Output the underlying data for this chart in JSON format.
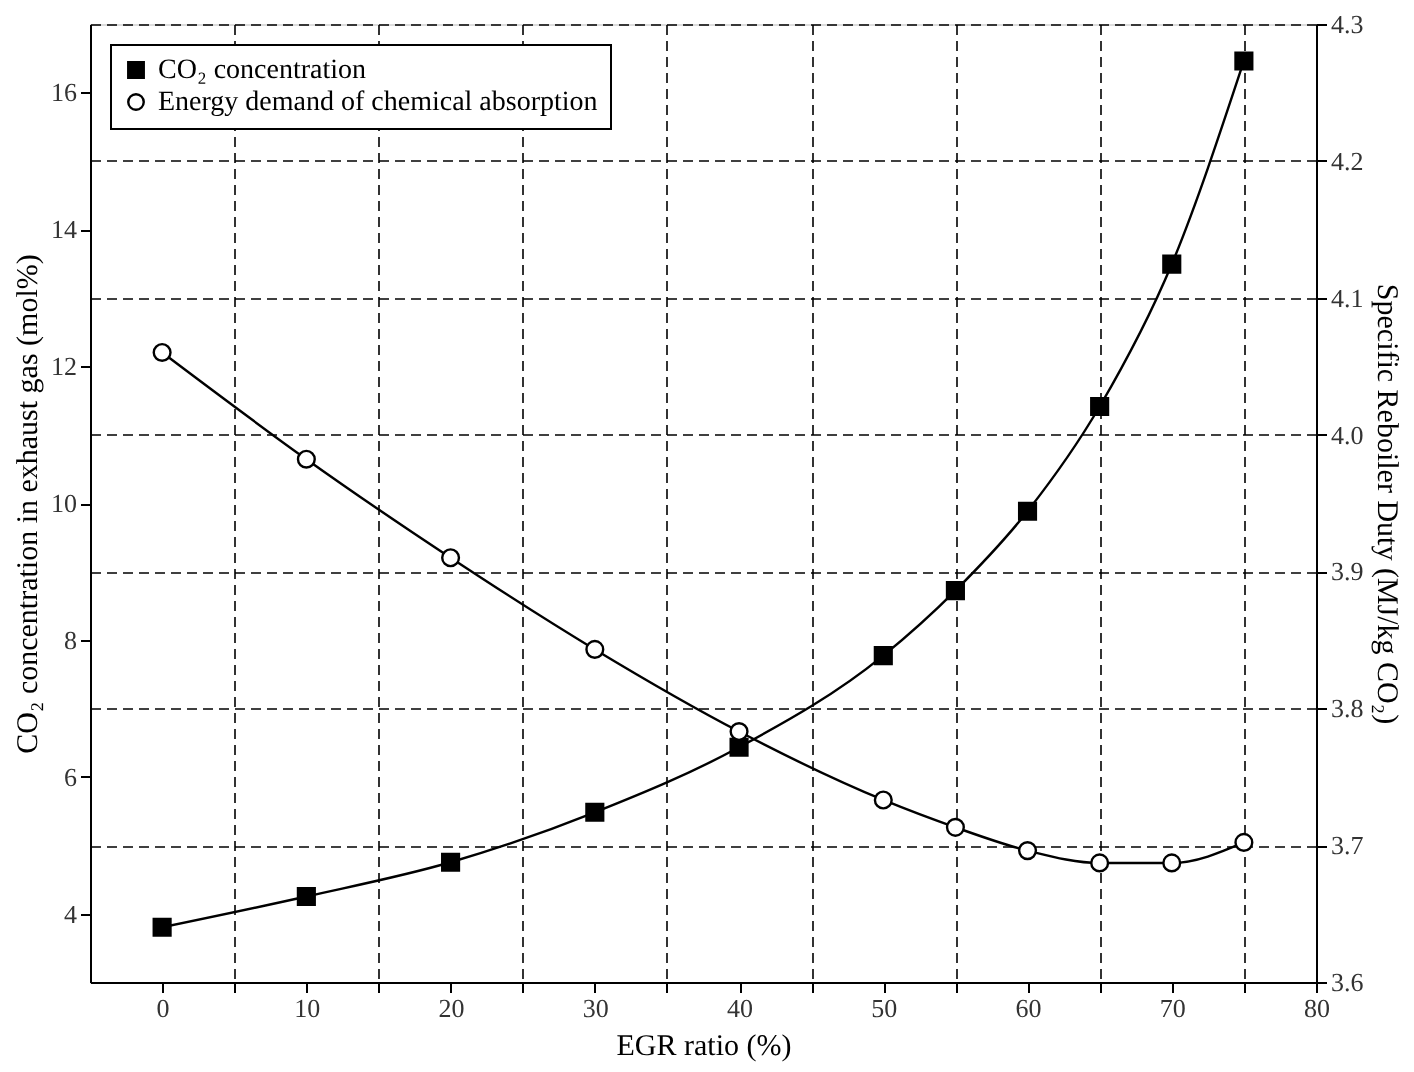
{
  "chart_data": {
    "type": "line",
    "xlabel": "EGR ratio (%)",
    "ylabel": "CO₂ concentration in exhaust gas (mol%)",
    "y2label": "Specific Reboiler Duty (MJ/kg CO₂)",
    "x": [
      0,
      10,
      20,
      30,
      40,
      50,
      55,
      60,
      65,
      70,
      75
    ],
    "series": [
      {
        "name": "CO₂ concentration",
        "color": "#000000",
        "marker": "square",
        "values": [
          3.8,
          4.25,
          4.75,
          5.48,
          6.43,
          7.77,
          8.72,
          9.88,
          11.41,
          13.49,
          16.46
        ]
      },
      {
        "name": "Energy demand of chemical absorption",
        "color": "#000000",
        "marker": "circle",
        "axis": "y2",
        "values": [
          4.06,
          3.982,
          3.91,
          3.843,
          3.783,
          3.733,
          3.713,
          3.696,
          3.687,
          3.687,
          3.702
        ]
      }
    ],
    "xlim": [
      -5,
      80
    ],
    "xticks": [
      0,
      {
        "value": 5,
        "label": null
      },
      10,
      {
        "value": 15,
        "label": null
      },
      20,
      {
        "value": 25,
        "label": null
      },
      30,
      {
        "value": 35,
        "label": null
      },
      40,
      {
        "value": 45,
        "label": null
      },
      50,
      {
        "value": 55,
        "label": null
      },
      60,
      {
        "value": 65,
        "label": null
      },
      70,
      {
        "value": 75,
        "label": null
      },
      80
    ],
    "ylim": [
      3,
      17
    ],
    "yticks": [
      4,
      6,
      8,
      10,
      12,
      14,
      16
    ],
    "y2lim": [
      3.6,
      4.3
    ],
    "y2ticks": [
      3.6,
      3.7,
      3.8,
      3.9,
      {
        "value": 4,
        "label": "4.0"
      },
      4.1,
      4.2,
      4.3
    ],
    "grid": true,
    "legend": "top left",
    "line_style": "solid"
  }
}
